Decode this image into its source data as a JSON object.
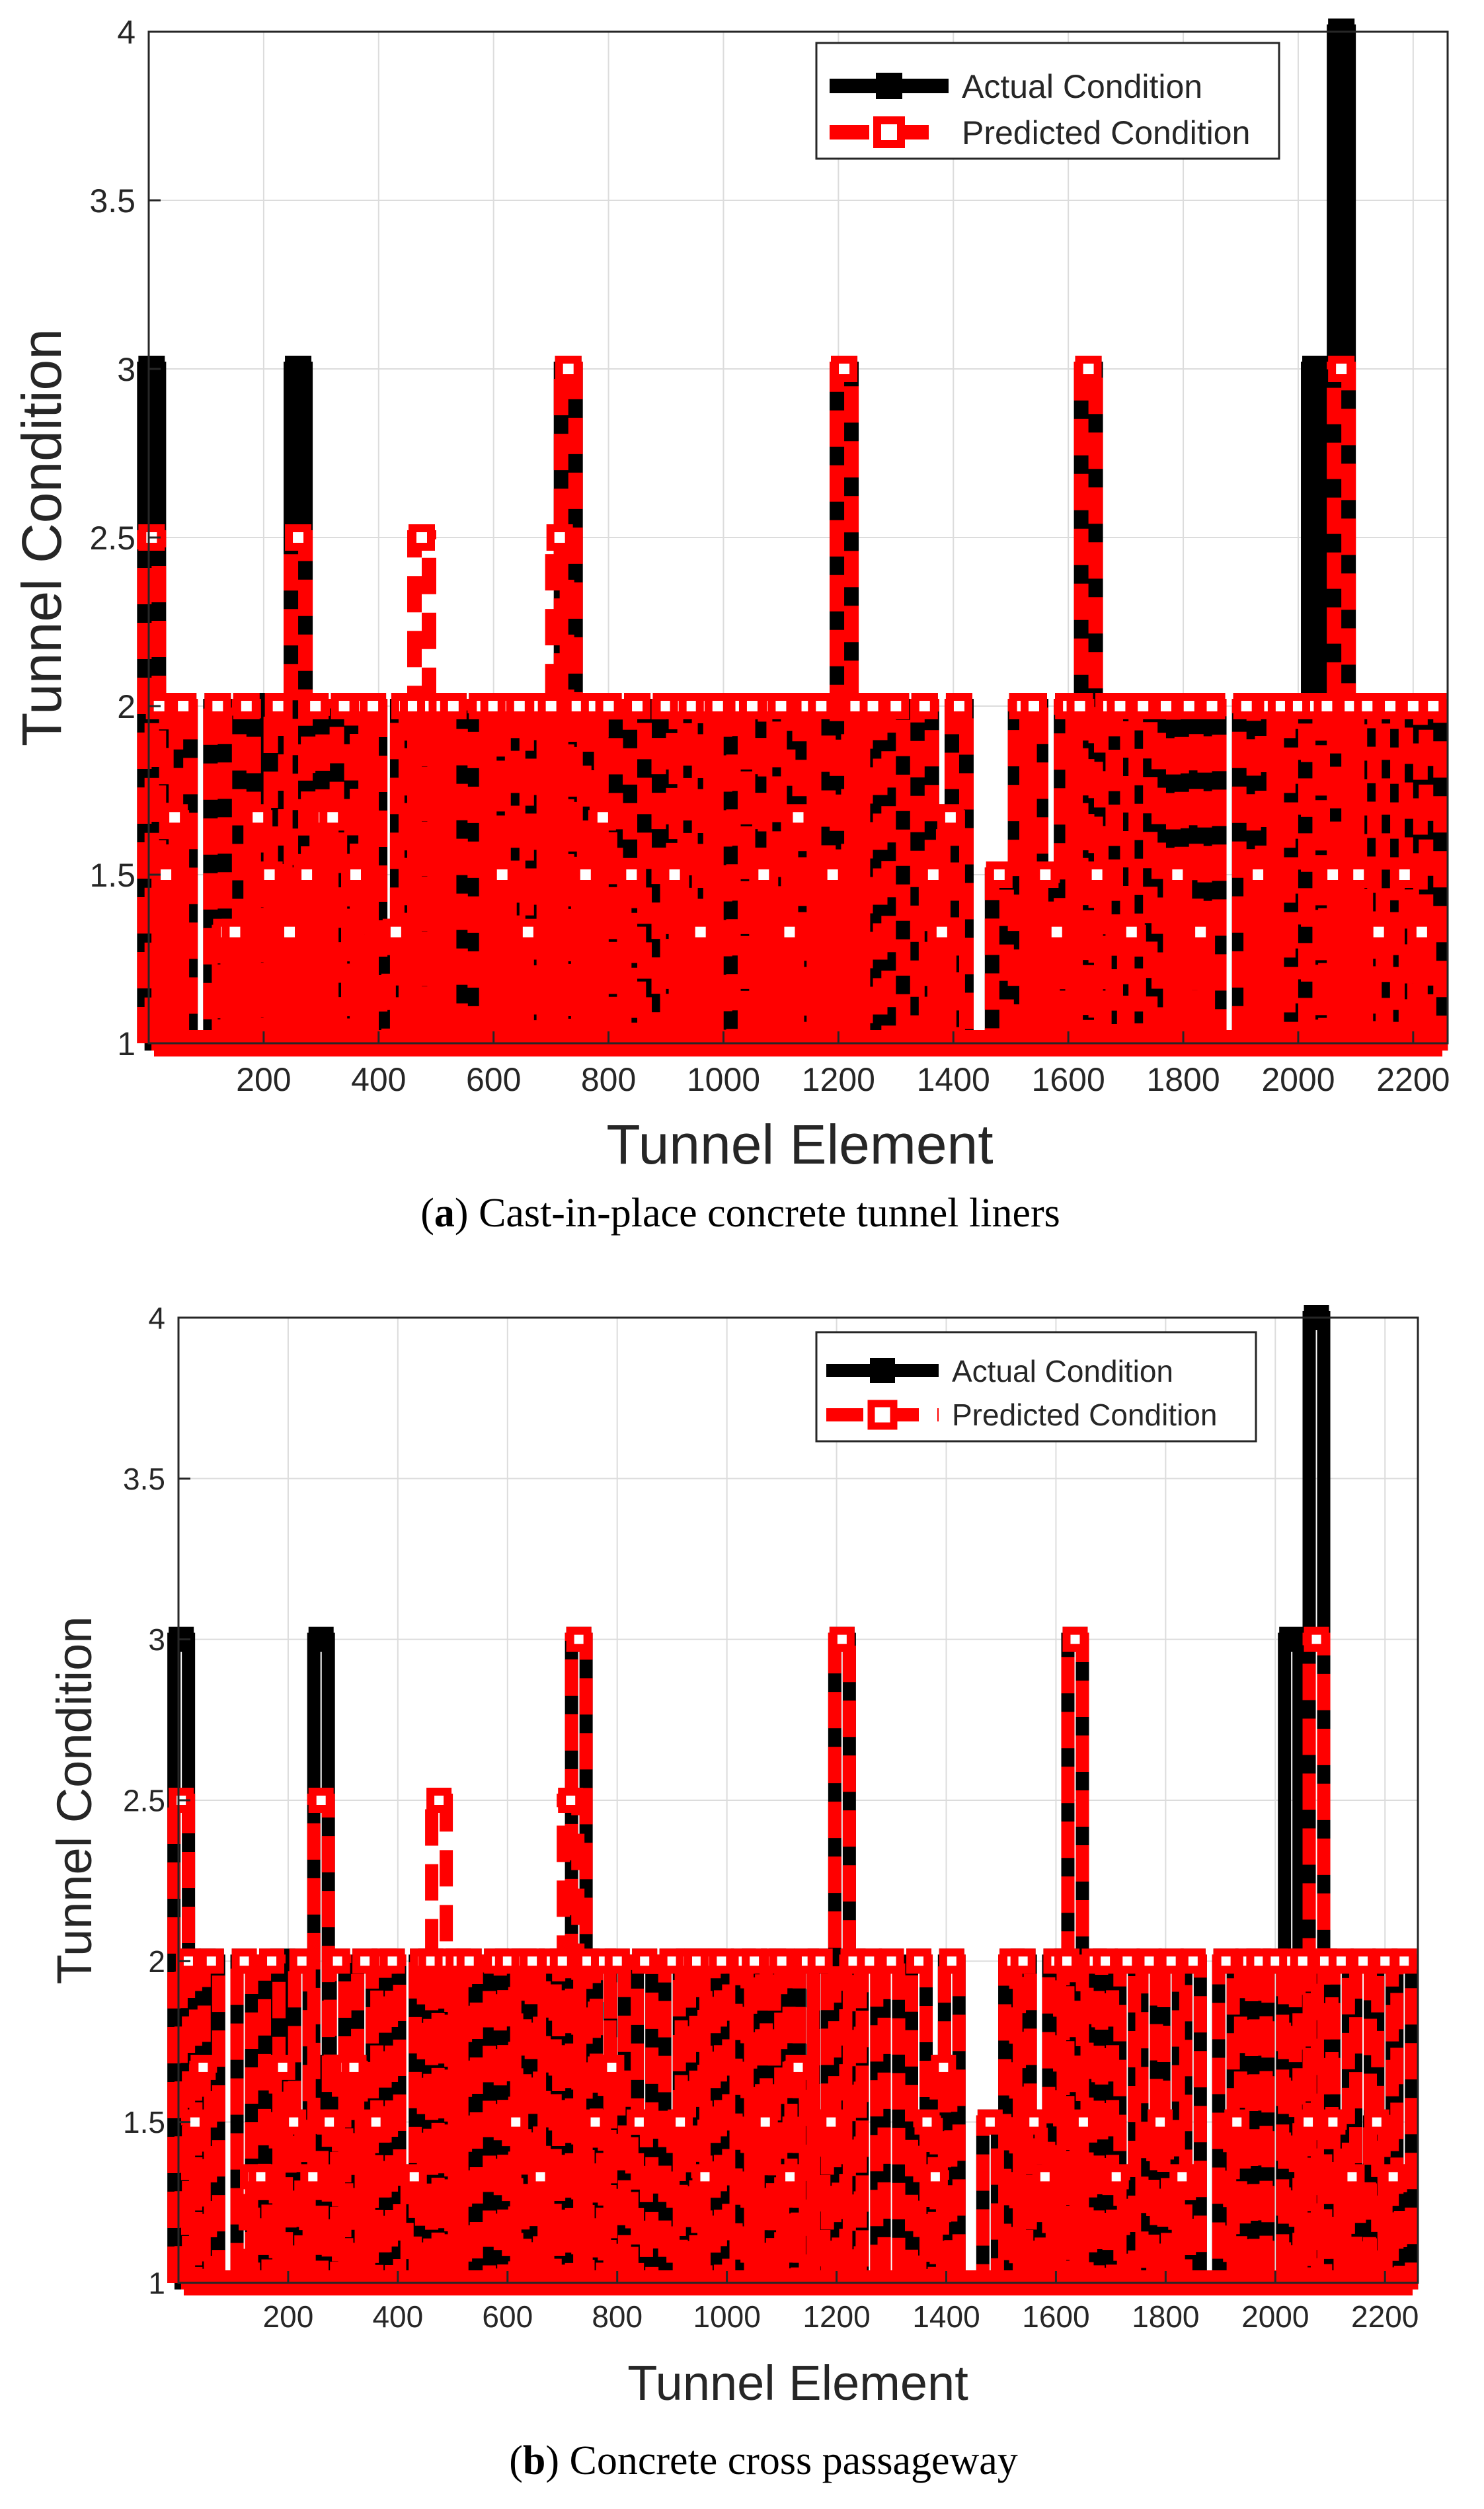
{
  "chart_data": [
    {
      "type": "line",
      "caption_label": "a",
      "caption_text": "Cast-in-place concrete tunnel liners",
      "xlabel": "Tunnel Element",
      "ylabel": "Tunnel Condition",
      "xlim": [
        0,
        2260
      ],
      "ylim": [
        1,
        4
      ],
      "xticks": [
        200,
        400,
        600,
        800,
        1000,
        1200,
        1400,
        1600,
        1800,
        2000,
        2200
      ],
      "yticks": [
        1,
        1.5,
        2,
        2.5,
        3,
        3.5,
        4
      ],
      "grid": true,
      "legend_location": "top-right",
      "colors": {
        "actual": "#000000",
        "predicted": "#ff0000",
        "grid": "#dcdcdc",
        "axis": "#262626"
      },
      "series": [
        {
          "name": "Actual Condition",
          "x": [
            5,
            18,
            30,
            45,
            60,
            120,
            135,
            150,
            170,
            190,
            210,
            225,
            245,
            260,
            275,
            290,
            305,
            320,
            340,
            360,
            375,
            390,
            430,
            445,
            460,
            475,
            490,
            510,
            530,
            580,
            600,
            615,
            630,
            645,
            660,
            680,
            700,
            715,
            730,
            745,
            760,
            775,
            790,
            800,
            840,
            850,
            900,
            915,
            930,
            945,
            960,
            975,
            990,
            1030,
            1050,
            1070,
            1085,
            1100,
            1115,
            1130,
            1145,
            1170,
            1190,
            1210,
            1230,
            1260,
            1300,
            1350,
            1365,
            1380,
            1395,
            1410,
            1480,
            1520,
            1540,
            1560,
            1580,
            1600,
            1620,
            1635,
            1650,
            1670,
            1690,
            1710,
            1730,
            1770,
            1790,
            1810,
            1830,
            1850,
            1910,
            1930,
            1950,
            1970,
            2000,
            2030,
            2050,
            2060,
            2075,
            2090,
            2105,
            2120,
            2140,
            2160,
            2185,
            2200,
            2215,
            2235
          ],
          "values": [
            3,
            2,
            1.5,
            2,
            2,
            2,
            1,
            1.33,
            2,
            2,
            1.5,
            2,
            1,
            3,
            1.67,
            2,
            1.67,
            1.67,
            2,
            1.5,
            2,
            2,
            1.33,
            2,
            2,
            1.67,
            2,
            2,
            2,
            2,
            2,
            1.5,
            2,
            2,
            1.33,
            2,
            2,
            1.67,
            3,
            2,
            1.5,
            2,
            1.67,
            2,
            1.5,
            2,
            2,
            1.5,
            2,
            2,
            1.33,
            2,
            2,
            2,
            2,
            1.5,
            2,
            2,
            1.33,
            1.67,
            2,
            2,
            1.5,
            3,
            2,
            2,
            2,
            2,
            1.5,
            1.33,
            1.67,
            2,
            1.5,
            2,
            2,
            1.5,
            1.33,
            2,
            2,
            3,
            1.5,
            2,
            2,
            1.33,
            2,
            2,
            1.5,
            2,
            1.33,
            2,
            2,
            1.5,
            2,
            2,
            2,
            3,
            2,
            1.5,
            4,
            2,
            1.5,
            2,
            1.33,
            2,
            1.5,
            2,
            1.33,
            2
          ]
        },
        {
          "name": "Predicted Condition",
          "x": [
            5,
            18,
            30,
            45,
            60,
            120,
            135,
            150,
            170,
            190,
            210,
            225,
            245,
            260,
            275,
            290,
            305,
            320,
            340,
            360,
            375,
            390,
            430,
            445,
            460,
            475,
            490,
            510,
            530,
            580,
            600,
            615,
            630,
            645,
            660,
            680,
            700,
            715,
            730,
            745,
            760,
            775,
            790,
            800,
            840,
            850,
            900,
            915,
            930,
            945,
            960,
            975,
            990,
            1030,
            1050,
            1070,
            1085,
            1100,
            1115,
            1130,
            1145,
            1170,
            1190,
            1210,
            1230,
            1260,
            1300,
            1350,
            1365,
            1380,
            1395,
            1410,
            1480,
            1520,
            1540,
            1560,
            1580,
            1600,
            1620,
            1635,
            1650,
            1670,
            1690,
            1710,
            1730,
            1770,
            1790,
            1810,
            1830,
            1850,
            1910,
            1930,
            1950,
            1970,
            2000,
            2030,
            2050,
            2060,
            2075,
            2090,
            2105,
            2120,
            2140,
            2160,
            2185,
            2200,
            2215,
            2235
          ],
          "values": [
            2.5,
            2,
            1.5,
            1.67,
            2,
            2,
            1.33,
            1.33,
            2,
            1.67,
            1.5,
            2,
            1.33,
            2.5,
            1.5,
            2,
            1.67,
            1.67,
            2,
            1.5,
            2,
            2,
            1.33,
            2,
            2,
            2.5,
            2,
            2,
            2,
            2,
            2,
            1.5,
            2,
            2,
            1.33,
            2,
            2,
            2.5,
            3,
            2,
            1.5,
            2,
            1.67,
            2,
            1.5,
            2,
            2,
            1.5,
            2,
            2,
            1.33,
            2,
            2,
            2,
            2,
            1.5,
            2,
            2,
            1.33,
            1.67,
            2,
            2,
            1.5,
            3,
            2,
            2,
            2,
            2,
            1.5,
            1.33,
            1.67,
            2,
            1.5,
            2,
            2,
            1.5,
            1.33,
            2,
            2,
            3,
            1.5,
            2,
            2,
            1.33,
            2,
            2,
            1.5,
            2,
            1.33,
            2,
            2,
            1.5,
            2,
            2,
            2,
            2,
            2,
            1.5,
            3,
            2,
            1.5,
            2,
            1.33,
            2,
            1.5,
            2,
            1.33,
            2
          ]
        }
      ]
    },
    {
      "type": "line",
      "caption_label": "b",
      "caption_text": "Concrete cross passageway",
      "xlabel": "Tunnel Element",
      "ylabel": "Tunnel Condition",
      "xlim": [
        0,
        2260
      ],
      "ylim": [
        1,
        4
      ],
      "xticks": [
        200,
        400,
        600,
        800,
        1000,
        1200,
        1400,
        1600,
        1800,
        2000,
        2200
      ],
      "yticks": [
        1,
        1.5,
        2,
        2.5,
        3,
        3.5,
        4
      ],
      "grid": true,
      "legend_location": "top-right",
      "colors": {
        "actual": "#000000",
        "predicted": "#ff0000",
        "grid": "#dcdcdc",
        "axis": "#262626"
      },
      "series": [
        {
          "name": "Actual Condition",
          "x": [
            5,
            18,
            30,
            45,
            60,
            120,
            135,
            150,
            170,
            190,
            210,
            225,
            245,
            260,
            275,
            290,
            305,
            320,
            340,
            360,
            375,
            390,
            430,
            445,
            460,
            475,
            490,
            510,
            530,
            580,
            600,
            615,
            630,
            645,
            660,
            680,
            700,
            715,
            730,
            745,
            760,
            775,
            790,
            800,
            840,
            850,
            900,
            915,
            930,
            945,
            960,
            975,
            990,
            1030,
            1050,
            1070,
            1085,
            1100,
            1115,
            1130,
            1145,
            1170,
            1190,
            1210,
            1230,
            1260,
            1300,
            1350,
            1365,
            1380,
            1395,
            1410,
            1480,
            1520,
            1540,
            1560,
            1580,
            1600,
            1620,
            1635,
            1650,
            1670,
            1690,
            1710,
            1730,
            1770,
            1790,
            1810,
            1830,
            1850,
            1910,
            1930,
            1950,
            1970,
            2000,
            2030,
            2050,
            2060,
            2075,
            2090,
            2105,
            2120,
            2140,
            2160,
            2185,
            2200,
            2215,
            2235
          ],
          "values": [
            3,
            2,
            1.5,
            2,
            2,
            2,
            1,
            1.33,
            2,
            2,
            1.5,
            2,
            1,
            3,
            1.67,
            2,
            1.67,
            1.67,
            2,
            1.5,
            2,
            2,
            1.33,
            2,
            2,
            1.67,
            2,
            2,
            2,
            2,
            2,
            1.5,
            2,
            2,
            1.33,
            2,
            2,
            1.67,
            3,
            2,
            1.5,
            2,
            1.67,
            2,
            1.5,
            2,
            2,
            1.5,
            2,
            2,
            1.33,
            2,
            2,
            2,
            2,
            1.5,
            2,
            2,
            1.33,
            1.67,
            2,
            2,
            1.5,
            3,
            2,
            2,
            2,
            2,
            1.5,
            1.33,
            1.67,
            2,
            1.5,
            2,
            2,
            1.5,
            1.33,
            2,
            2,
            3,
            1.5,
            2,
            2,
            1.33,
            2,
            2,
            1.5,
            2,
            1.33,
            2,
            2,
            1.5,
            2,
            2,
            2,
            3,
            2,
            1.5,
            4,
            2,
            1.5,
            2,
            1.33,
            2,
            1.5,
            2,
            1.33,
            2
          ]
        },
        {
          "name": "Predicted Condition",
          "x": [
            5,
            18,
            30,
            45,
            60,
            120,
            135,
            150,
            170,
            190,
            210,
            225,
            245,
            260,
            275,
            290,
            305,
            320,
            340,
            360,
            375,
            390,
            430,
            445,
            460,
            475,
            490,
            510,
            530,
            580,
            600,
            615,
            630,
            645,
            660,
            680,
            700,
            715,
            730,
            745,
            760,
            775,
            790,
            800,
            840,
            850,
            900,
            915,
            930,
            945,
            960,
            975,
            990,
            1030,
            1050,
            1070,
            1085,
            1100,
            1115,
            1130,
            1145,
            1170,
            1190,
            1210,
            1230,
            1260,
            1300,
            1350,
            1365,
            1380,
            1395,
            1410,
            1480,
            1520,
            1540,
            1560,
            1580,
            1600,
            1620,
            1635,
            1650,
            1670,
            1690,
            1710,
            1730,
            1770,
            1790,
            1810,
            1830,
            1850,
            1910,
            1930,
            1950,
            1970,
            2000,
            2030,
            2050,
            2060,
            2075,
            2090,
            2105,
            2120,
            2140,
            2160,
            2185,
            2200,
            2215,
            2235
          ],
          "values": [
            2.5,
            2,
            1.5,
            1.67,
            2,
            2,
            1.33,
            1.33,
            2,
            1.67,
            1.5,
            2,
            1.33,
            2.5,
            1.5,
            2,
            1.67,
            1.67,
            2,
            1.5,
            2,
            2,
            1.33,
            2,
            2,
            2.5,
            2,
            2,
            2,
            2,
            2,
            1.5,
            2,
            2,
            1.33,
            2,
            2,
            2.5,
            3,
            2,
            1.5,
            2,
            1.67,
            2,
            1.5,
            2,
            2,
            1.5,
            2,
            2,
            1.33,
            2,
            2,
            2,
            2,
            1.5,
            2,
            2,
            1.33,
            1.67,
            2,
            2,
            1.5,
            3,
            2,
            2,
            2,
            2,
            1.5,
            1.33,
            1.67,
            2,
            1.5,
            2,
            2,
            1.5,
            1.33,
            2,
            2,
            3,
            1.5,
            2,
            2,
            1.33,
            2,
            2,
            1.5,
            2,
            1.33,
            2,
            2,
            1.5,
            2,
            2,
            2,
            2,
            2,
            1.5,
            3,
            2,
            1.5,
            2,
            1.33,
            2,
            1.5,
            2,
            1.33,
            2
          ]
        }
      ]
    }
  ]
}
